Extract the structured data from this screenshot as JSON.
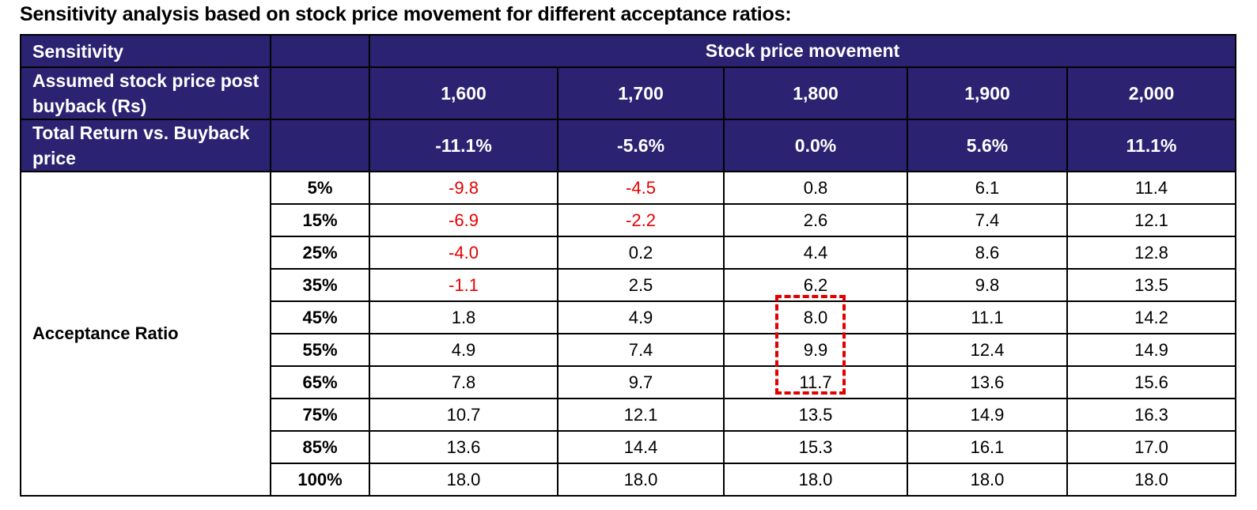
{
  "title": "Sensitivity analysis based on stock price movement for different acceptance ratios:",
  "colors": {
    "header_bg": "#2b2272",
    "negative": "#e60000",
    "highlight_border": "#e30000"
  },
  "header": {
    "sensitivity_label": "Sensitivity",
    "stock_movement_label": "Stock price movement",
    "price_row_label": "Assumed stock price post buyback (Rs)",
    "return_row_label": "Total Return vs. Buyback price",
    "prices": [
      "1,600",
      "1,700",
      "1,800",
      "1,900",
      "2,000"
    ],
    "returns": [
      "-11.1%",
      "-5.6%",
      "0.0%",
      "5.6%",
      "11.1%"
    ]
  },
  "acceptance_label": "Acceptance Ratio",
  "rows": [
    {
      "ratio": "5%",
      "values": [
        "-9.8",
        "-4.5",
        "0.8",
        "6.1",
        "11.4"
      ]
    },
    {
      "ratio": "15%",
      "values": [
        "-6.9",
        "-2.2",
        "2.6",
        "7.4",
        "12.1"
      ]
    },
    {
      "ratio": "25%",
      "values": [
        "-4.0",
        "0.2",
        "4.4",
        "8.6",
        "12.8"
      ]
    },
    {
      "ratio": "35%",
      "values": [
        "-1.1",
        "2.5",
        "6.2",
        "9.8",
        "13.5"
      ]
    },
    {
      "ratio": "45%",
      "values": [
        "1.8",
        "4.9",
        "8.0",
        "11.1",
        "14.2"
      ]
    },
    {
      "ratio": "55%",
      "values": [
        "4.9",
        "7.4",
        "9.9",
        "12.4",
        "14.9"
      ]
    },
    {
      "ratio": "65%",
      "values": [
        "7.8",
        "9.7",
        "11.7",
        "13.6",
        "15.6"
      ]
    },
    {
      "ratio": "75%",
      "values": [
        "10.7",
        "12.1",
        "13.5",
        "14.9",
        "16.3"
      ]
    },
    {
      "ratio": "85%",
      "values": [
        "13.6",
        "14.4",
        "15.3",
        "16.1",
        "17.0"
      ]
    },
    {
      "ratio": "100%",
      "values": [
        "18.0",
        "18.0",
        "18.0",
        "18.0",
        "18.0"
      ]
    }
  ],
  "highlight": {
    "column": "1,800",
    "ratios": [
      "45%",
      "55%",
      "65%"
    ]
  }
}
